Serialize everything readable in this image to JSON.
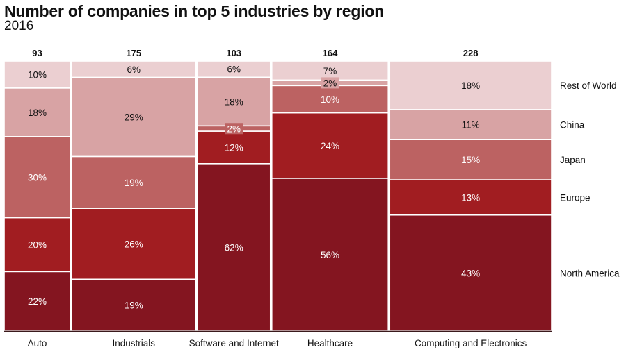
{
  "chart_data": {
    "type": "mosaic",
    "title": "Number of companies in top 5 industries by region",
    "subtitle": "2016",
    "xlabel": "",
    "ylabel": "",
    "categories": [
      "Auto",
      "Industrials",
      "Software and Internet",
      "Healthcare",
      "Computing and Electronics"
    ],
    "totals": [
      93,
      175,
      103,
      164,
      228
    ],
    "stack_order_top_to_bottom": [
      "Rest of World",
      "China",
      "Japan",
      "Europe",
      "North America"
    ],
    "series": [
      {
        "name": "Rest of World",
        "color": "#ebcfd1",
        "label_color": "#111111",
        "values": [
          10,
          6,
          6,
          7,
          18
        ]
      },
      {
        "name": "China",
        "color": "#d8a3a4",
        "label_color": "#111111",
        "values": [
          18,
          29,
          18,
          2,
          11
        ]
      },
      {
        "name": "Japan",
        "color": "#bc6262",
        "label_color": "#ffffff",
        "values": [
          30,
          19,
          2,
          10,
          15
        ]
      },
      {
        "name": "Europe",
        "color": "#a11d21",
        "label_color": "#ffffff",
        "values": [
          20,
          26,
          12,
          24,
          13
        ]
      },
      {
        "name": "North America",
        "color": "#841520",
        "label_color": "#ffffff",
        "values": [
          22,
          19,
          62,
          56,
          43
        ]
      }
    ],
    "value_unit": "%",
    "legend": {
      "position": "right",
      "labels": [
        "Rest of World",
        "China",
        "Japan",
        "Europe",
        "North America"
      ]
    },
    "grid": false
  }
}
